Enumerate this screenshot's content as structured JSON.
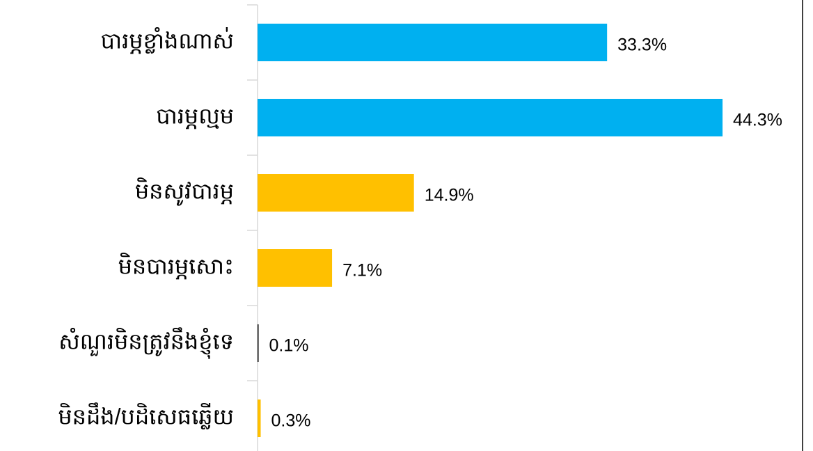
{
  "chart_data": {
    "type": "hbar",
    "categories": [
      "បារម្ភខ្លាំងណាស់",
      "បារម្ភល្មម",
      "មិនសូវបារម្ភ",
      "មិនបារម្ភសោះ",
      "សំណួរមិនត្រូវនឹងខ្ញុំទេ",
      "មិនដឹង/បដិសេធឆ្លើយ"
    ],
    "values": [
      33.3,
      44.3,
      14.9,
      7.1,
      0.1,
      0.3
    ],
    "value_labels": [
      "33.3%",
      "44.3%",
      "14.9%",
      "7.1%",
      "0.1%",
      "0.3%"
    ],
    "colors": [
      "#00b0f0",
      "#00b0f0",
      "#ffc000",
      "#ffc000",
      "#000000",
      "#ffc000"
    ],
    "xlim": [
      0,
      50
    ]
  }
}
